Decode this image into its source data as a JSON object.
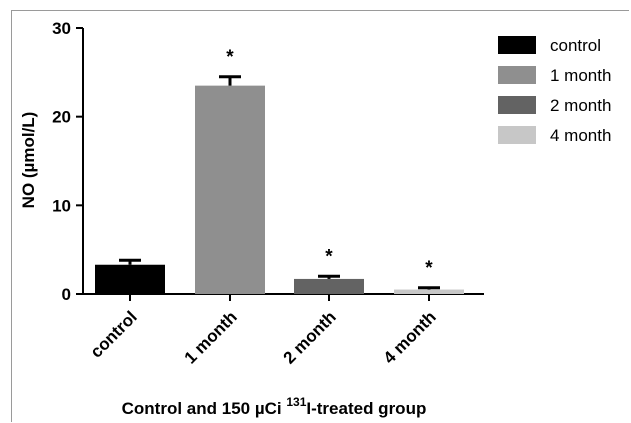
{
  "chart_data": {
    "type": "bar",
    "categories": [
      "control",
      "1 month",
      "2 month",
      "4 month"
    ],
    "values": [
      3.3,
      23.5,
      1.7,
      0.5
    ],
    "errors": [
      0.5,
      1.0,
      0.3,
      0.2
    ],
    "significance": [
      "",
      "*",
      "*",
      "*"
    ],
    "colors": [
      "#000000",
      "#8f8f8f",
      "#636363",
      "#c7c7c7"
    ],
    "ylabel": "NO (µmol/L)",
    "xlabel_parts": {
      "prefix": "Control and 150 µCi ",
      "superscript": "131",
      "suffix": "I-treated group"
    },
    "ylim": [
      0,
      30
    ],
    "yticks": [
      0,
      10,
      20,
      30
    ],
    "grid": false,
    "legend": {
      "placement": "top-right",
      "entries": [
        "control",
        "1 month",
        "2 month",
        "4 month"
      ]
    }
  }
}
